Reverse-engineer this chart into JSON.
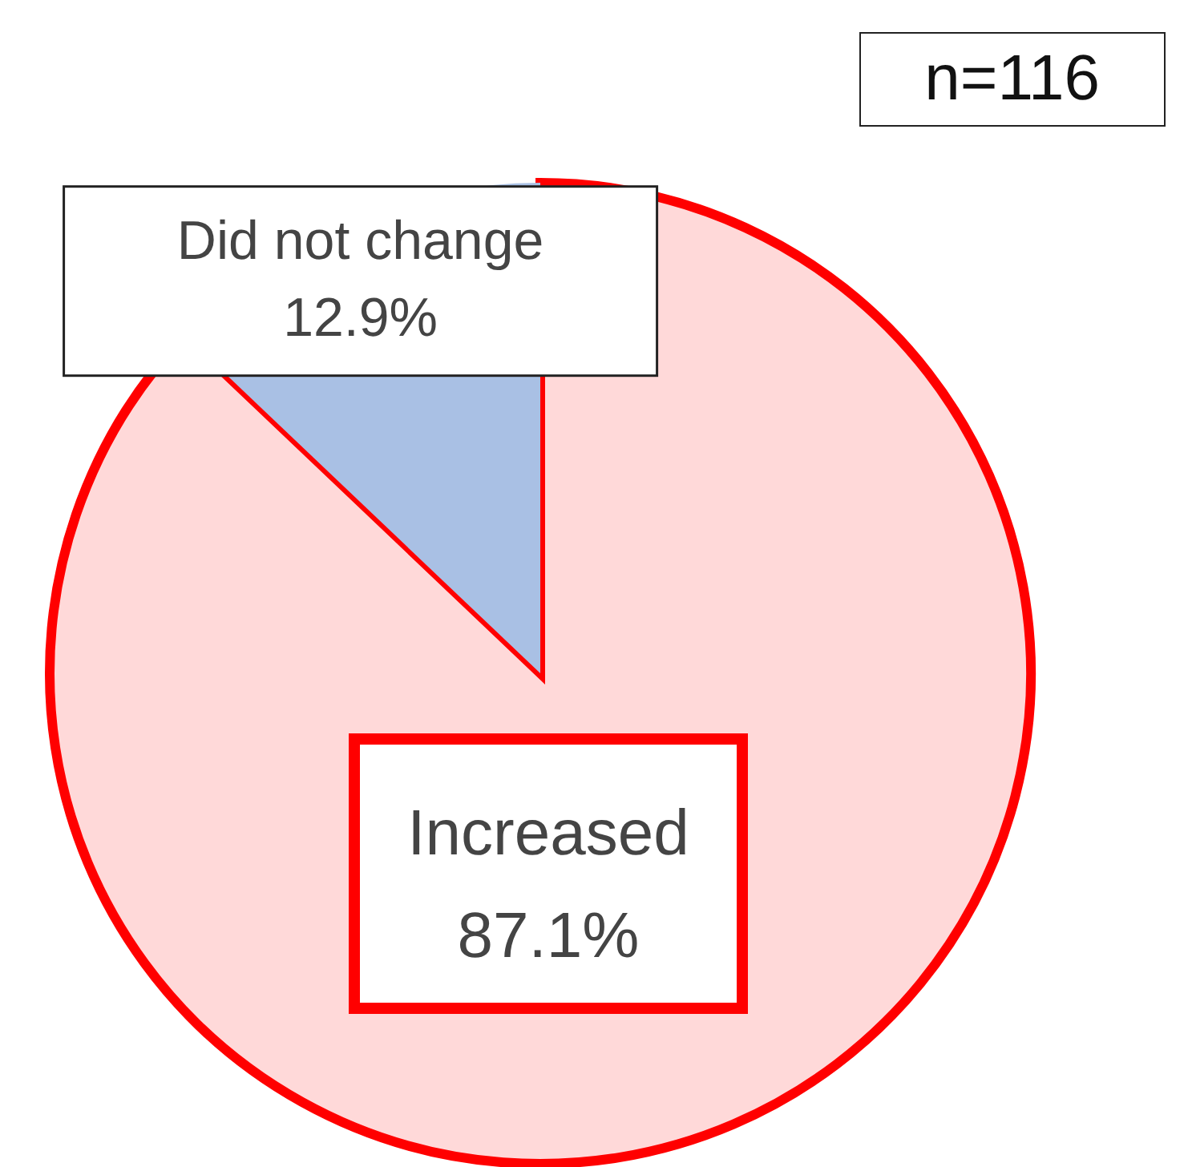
{
  "chart_data": {
    "type": "pie",
    "categories": [
      "Increased",
      "Did not change"
    ],
    "values": [
      87.1,
      12.9
    ],
    "value_labels": [
      "87.1%",
      "12.9%"
    ],
    "colors": [
      "#ffd9d9",
      "#a9c0e4"
    ],
    "annotations": [
      "n=116"
    ],
    "legend": false
  }
}
